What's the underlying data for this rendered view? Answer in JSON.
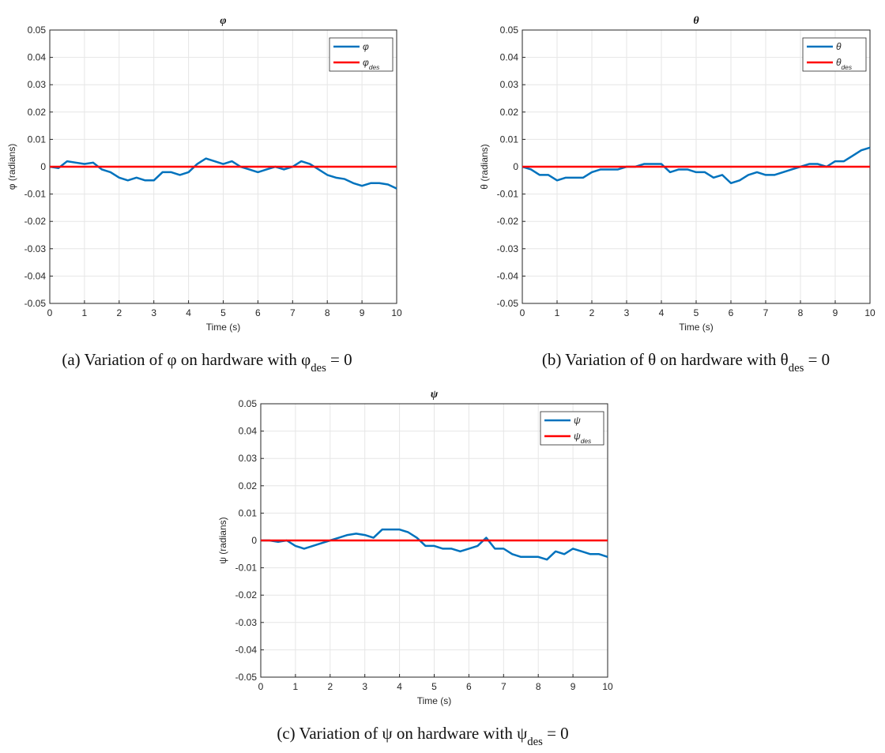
{
  "chart_data": [
    {
      "type": "line",
      "title": "φ",
      "xlabel": "Time (s)",
      "ylabel": "φ (radians)",
      "caption": "(a) Variation of φ on hardware with φ_des = 0",
      "x": [
        0,
        0.25,
        0.5,
        0.75,
        1,
        1.25,
        1.5,
        1.75,
        2,
        2.25,
        2.5,
        2.75,
        3,
        3.25,
        3.5,
        3.75,
        4,
        4.25,
        4.5,
        4.75,
        5,
        5.25,
        5.5,
        5.75,
        6,
        6.25,
        6.5,
        6.75,
        7,
        7.25,
        7.5,
        7.75,
        8,
        8.25,
        8.5,
        8.75,
        9,
        9.25,
        9.5,
        9.75,
        10
      ],
      "series": [
        {
          "name": "φ",
          "color": "#0072bd",
          "values": [
            0,
            -0.0005,
            0.002,
            0.0015,
            0.001,
            0.0015,
            -0.001,
            -0.002,
            -0.004,
            -0.005,
            -0.004,
            -0.005,
            -0.005,
            -0.002,
            -0.002,
            -0.003,
            -0.002,
            0.001,
            0.003,
            0.002,
            0.001,
            0.002,
            0,
            -0.001,
            -0.002,
            -0.001,
            0,
            -0.001,
            0,
            0.002,
            0.001,
            -0.001,
            -0.003,
            -0.004,
            -0.0045,
            -0.006,
            -0.007,
            -0.006,
            -0.006,
            -0.0065,
            -0.008
          ]
        },
        {
          "name": "φ_des",
          "color": "#ff0000",
          "values": [
            0,
            0,
            0,
            0,
            0,
            0,
            0,
            0,
            0,
            0,
            0,
            0,
            0,
            0,
            0,
            0,
            0,
            0,
            0,
            0,
            0,
            0,
            0,
            0,
            0,
            0,
            0,
            0,
            0,
            0,
            0,
            0,
            0,
            0,
            0,
            0,
            0,
            0,
            0,
            0,
            0
          ]
        }
      ],
      "xlim": [
        0,
        10
      ],
      "ylim": [
        -0.05,
        0.05
      ],
      "xticks": [
        0,
        1,
        2,
        3,
        4,
        5,
        6,
        7,
        8,
        9,
        10
      ],
      "yticks": [
        -0.05,
        -0.04,
        -0.03,
        -0.02,
        -0.01,
        0,
        0.01,
        0.02,
        0.03,
        0.04,
        0.05
      ],
      "grid": true,
      "legend": "top-right"
    },
    {
      "type": "line",
      "title": "θ",
      "xlabel": "Time (s)",
      "ylabel": "θ (radians)",
      "caption": "(b) Variation of θ on hardware with θ_des = 0",
      "x": [
        0,
        0.25,
        0.5,
        0.75,
        1,
        1.25,
        1.5,
        1.75,
        2,
        2.25,
        2.5,
        2.75,
        3,
        3.25,
        3.5,
        3.75,
        4,
        4.25,
        4.5,
        4.75,
        5,
        5.25,
        5.5,
        5.75,
        6,
        6.25,
        6.5,
        6.75,
        7,
        7.25,
        7.5,
        7.75,
        8,
        8.25,
        8.5,
        8.75,
        9,
        9.25,
        9.5,
        9.75,
        10
      ],
      "series": [
        {
          "name": "θ",
          "color": "#0072bd",
          "values": [
            0,
            -0.001,
            -0.003,
            -0.003,
            -0.005,
            -0.004,
            -0.004,
            -0.004,
            -0.002,
            -0.001,
            -0.001,
            -0.001,
            0,
            0,
            0.001,
            0.001,
            0.001,
            -0.002,
            -0.001,
            -0.001,
            -0.002,
            -0.002,
            -0.004,
            -0.003,
            -0.006,
            -0.005,
            -0.003,
            -0.002,
            -0.003,
            -0.003,
            -0.002,
            -0.001,
            0,
            0.001,
            0.001,
            0,
            0.002,
            0.002,
            0.004,
            0.006,
            0.007
          ]
        },
        {
          "name": "θ_des",
          "color": "#ff0000",
          "values": [
            0,
            0,
            0,
            0,
            0,
            0,
            0,
            0,
            0,
            0,
            0,
            0,
            0,
            0,
            0,
            0,
            0,
            0,
            0,
            0,
            0,
            0,
            0,
            0,
            0,
            0,
            0,
            0,
            0,
            0,
            0,
            0,
            0,
            0,
            0,
            0,
            0,
            0,
            0,
            0,
            0
          ]
        }
      ],
      "xlim": [
        0,
        10
      ],
      "ylim": [
        -0.05,
        0.05
      ],
      "xticks": [
        0,
        1,
        2,
        3,
        4,
        5,
        6,
        7,
        8,
        9,
        10
      ],
      "yticks": [
        -0.05,
        -0.04,
        -0.03,
        -0.02,
        -0.01,
        0,
        0.01,
        0.02,
        0.03,
        0.04,
        0.05
      ],
      "grid": true,
      "legend": "top-right"
    },
    {
      "type": "line",
      "title": "ψ",
      "xlabel": "Time (s)",
      "ylabel": "ψ (radians)",
      "caption": "(c) Variation of ψ on hardware with ψ_des = 0",
      "x": [
        0,
        0.25,
        0.5,
        0.75,
        1,
        1.25,
        1.5,
        1.75,
        2,
        2.25,
        2.5,
        2.75,
        3,
        3.25,
        3.5,
        3.75,
        4,
        4.25,
        4.5,
        4.75,
        5,
        5.25,
        5.5,
        5.75,
        6,
        6.25,
        6.5,
        6.75,
        7,
        7.25,
        7.5,
        7.75,
        8,
        8.25,
        8.5,
        8.75,
        9,
        9.25,
        9.5,
        9.75,
        10
      ],
      "series": [
        {
          "name": "ψ",
          "color": "#0072bd",
          "values": [
            0,
            0,
            -0.0005,
            0,
            -0.002,
            -0.003,
            -0.002,
            -0.001,
            0,
            0.001,
            0.002,
            0.0025,
            0.002,
            0.001,
            0.004,
            0.004,
            0.004,
            0.003,
            0.001,
            -0.002,
            -0.002,
            -0.003,
            -0.003,
            -0.004,
            -0.003,
            -0.002,
            0.001,
            -0.003,
            -0.003,
            -0.005,
            -0.006,
            -0.006,
            -0.006,
            -0.007,
            -0.004,
            -0.005,
            -0.003,
            -0.004,
            -0.005,
            -0.005,
            -0.006
          ]
        },
        {
          "name": "ψ_des",
          "color": "#ff0000",
          "values": [
            0,
            0,
            0,
            0,
            0,
            0,
            0,
            0,
            0,
            0,
            0,
            0,
            0,
            0,
            0,
            0,
            0,
            0,
            0,
            0,
            0,
            0,
            0,
            0,
            0,
            0,
            0,
            0,
            0,
            0,
            0,
            0,
            0,
            0,
            0,
            0,
            0,
            0,
            0,
            0,
            0
          ]
        }
      ],
      "xlim": [
        0,
        10
      ],
      "ylim": [
        -0.05,
        0.05
      ],
      "xticks": [
        0,
        1,
        2,
        3,
        4,
        5,
        6,
        7,
        8,
        9,
        10
      ],
      "yticks": [
        -0.05,
        -0.04,
        -0.03,
        -0.02,
        -0.01,
        0,
        0.01,
        0.02,
        0.03,
        0.04,
        0.05
      ],
      "grid": true,
      "legend": "top-right"
    }
  ]
}
